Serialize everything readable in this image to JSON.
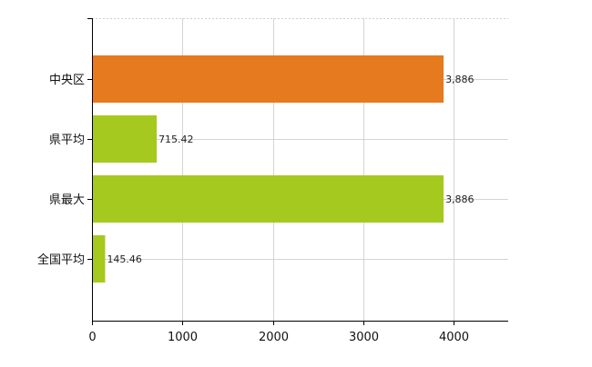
{
  "chart_data": {
    "type": "bar",
    "orientation": "horizontal",
    "categories": [
      "中央区",
      "県平均",
      "県最大",
      "全国平均"
    ],
    "values": [
      3886,
      715.42,
      3886,
      145.46
    ],
    "value_labels": [
      "3,886",
      "715.42",
      "3,886",
      "145.46"
    ],
    "bar_colors": [
      "#E57A1E",
      "#A5C91E",
      "#A5C91E",
      "#A5C91E"
    ],
    "xlim": [
      0,
      4600
    ],
    "x_ticks": [
      0,
      1000,
      2000,
      3000,
      4000
    ],
    "x_tick_labels": [
      "0",
      "1000",
      "2000",
      "3000",
      "4000"
    ],
    "title": "",
    "xlabel": "",
    "ylabel": "",
    "grid": true,
    "legend": "none"
  }
}
